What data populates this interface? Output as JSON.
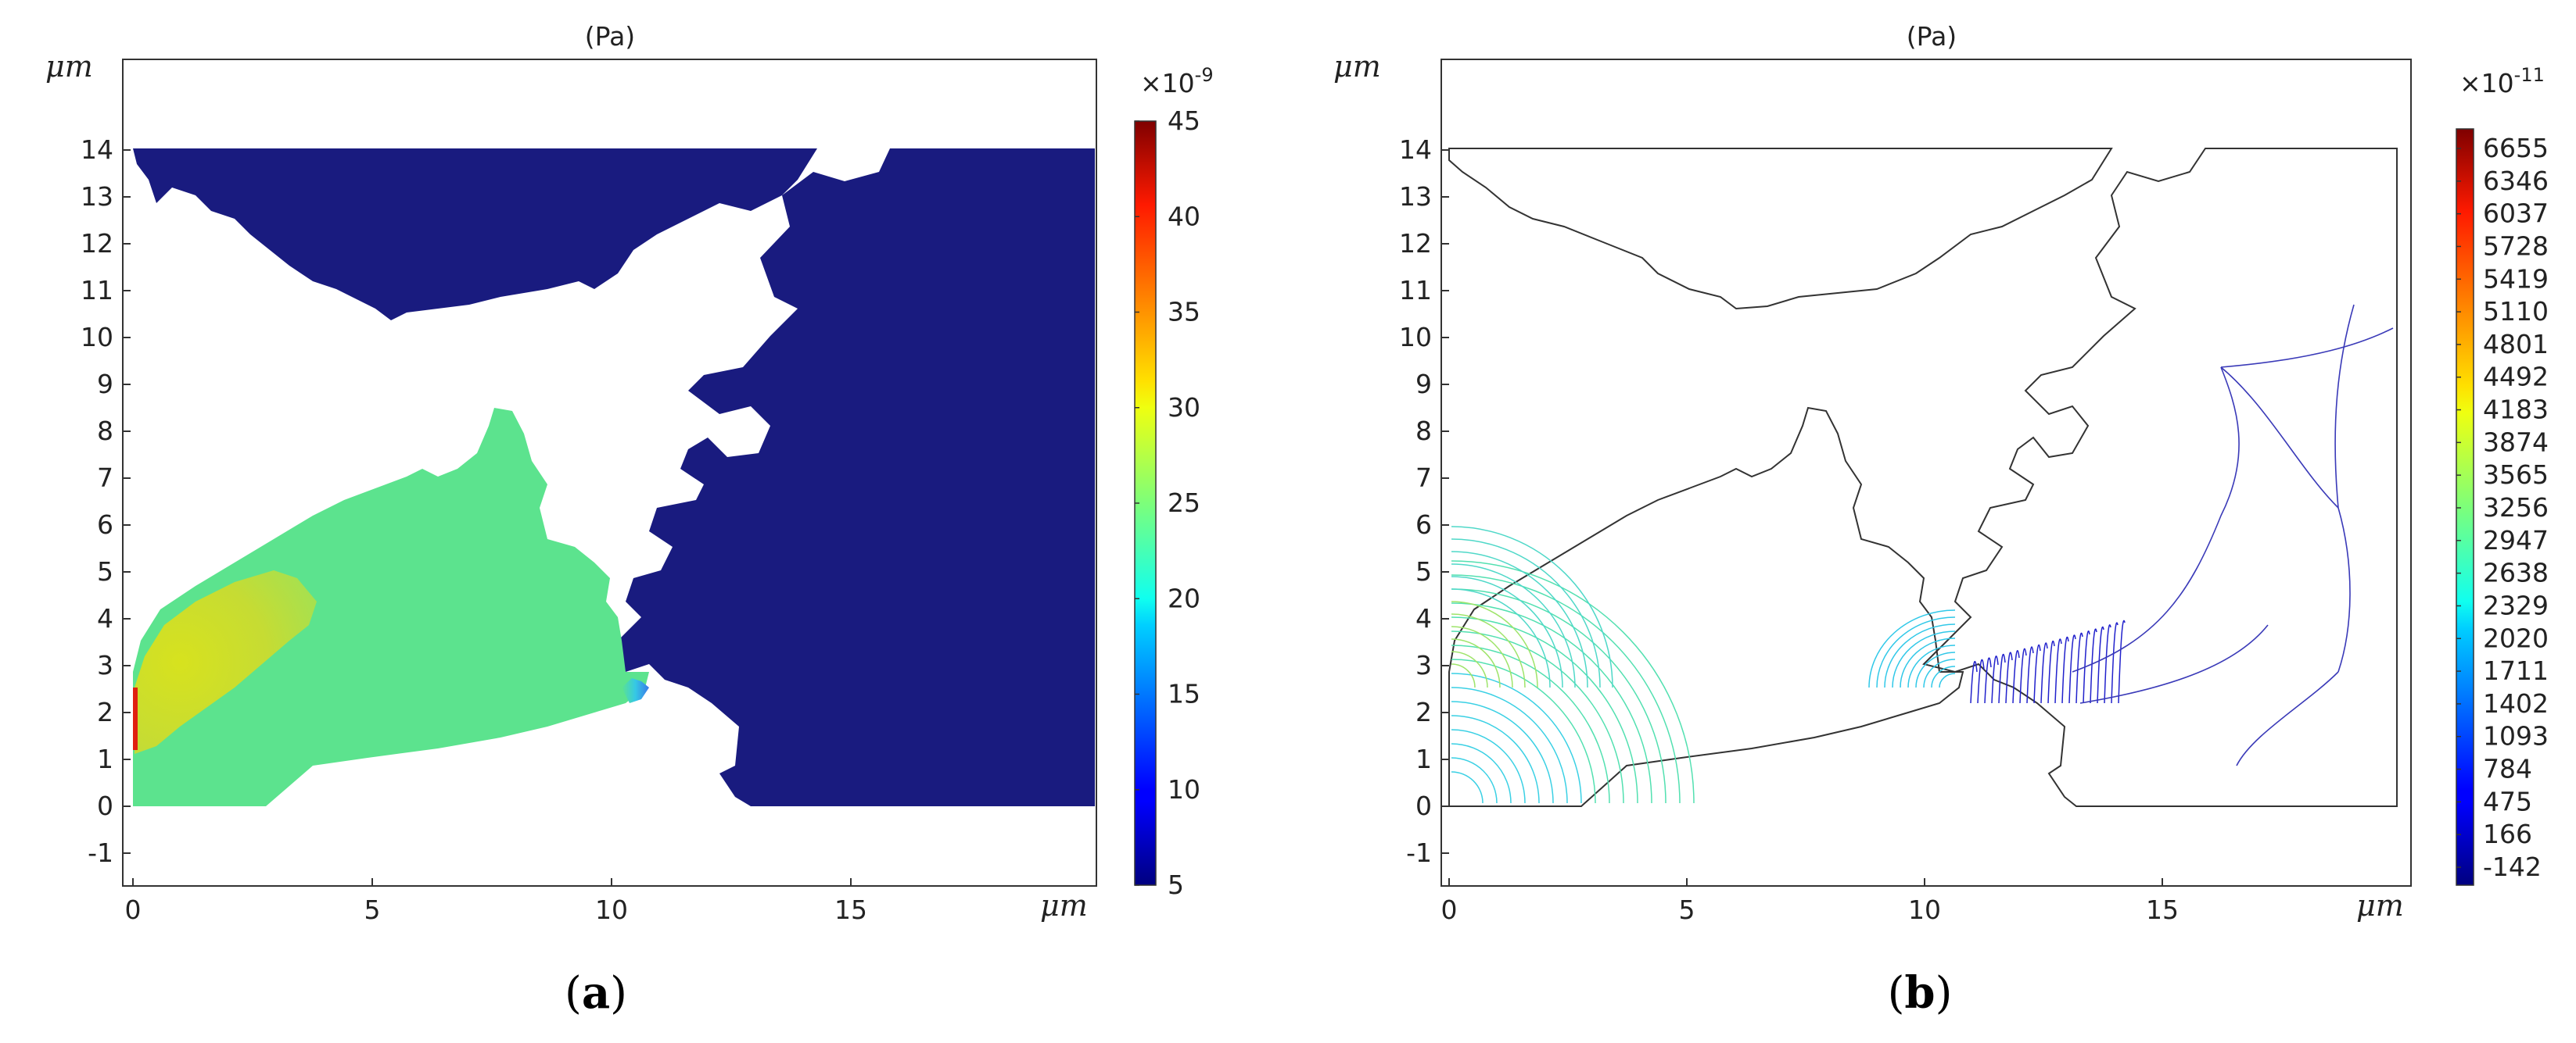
{
  "chart_data": [
    {
      "panel": "a",
      "type": "heatmap",
      "title": "(Pa)",
      "xlabel": "μm",
      "ylabel": "μm",
      "x_ticks": [
        0,
        5,
        10,
        15
      ],
      "y_ticks": [
        -1,
        0,
        1,
        2,
        3,
        4,
        5,
        6,
        7,
        8,
        9,
        10,
        11,
        12,
        13,
        14
      ],
      "xlim": [
        -0.2,
        20.2
      ],
      "ylim": [
        -1.8,
        15.8
      ],
      "grid": false,
      "colorbar": {
        "multiplier_base": "×10",
        "multiplier_exp": "-9",
        "ticks": [
          5,
          10,
          15,
          20,
          25,
          30,
          35,
          40,
          45
        ],
        "range": [
          5,
          45
        ],
        "colormap": "jet"
      },
      "regions": [
        {
          "name": "left-upper-lobe",
          "approx_value": 30
        },
        {
          "name": "left-center-region",
          "approx_value": 24
        },
        {
          "name": "right-region",
          "approx_value": 5
        }
      ],
      "caption": "(a)"
    },
    {
      "panel": "b",
      "type": "contour",
      "title": "(Pa)",
      "xlabel": "μm",
      "ylabel": "μm",
      "x_ticks": [
        0,
        5,
        10,
        15
      ],
      "y_ticks": [
        -1,
        0,
        1,
        2,
        3,
        4,
        5,
        6,
        7,
        8,
        9,
        10,
        11,
        12,
        13,
        14
      ],
      "xlim": [
        -0.2,
        20.2
      ],
      "ylim": [
        -1.8,
        15.8
      ],
      "grid": false,
      "colorbar": {
        "multiplier_base": "×10",
        "multiplier_exp": "-11",
        "ticks": [
          6655,
          6346,
          6037,
          5728,
          5419,
          5110,
          4801,
          4492,
          4183,
          3874,
          3565,
          3256,
          2947,
          2638,
          2329,
          2020,
          1711,
          1402,
          1093,
          784,
          475,
          166,
          -142
        ],
        "range": [
          -142,
          6655
        ],
        "colormap": "jet"
      },
      "caption": "(b)"
    }
  ],
  "colors": {
    "axis": "#222222",
    "outline": "#333333",
    "region_right": "#191b7f",
    "region_center": "#5ce38e",
    "region_lobe": "#ccdd2a"
  }
}
